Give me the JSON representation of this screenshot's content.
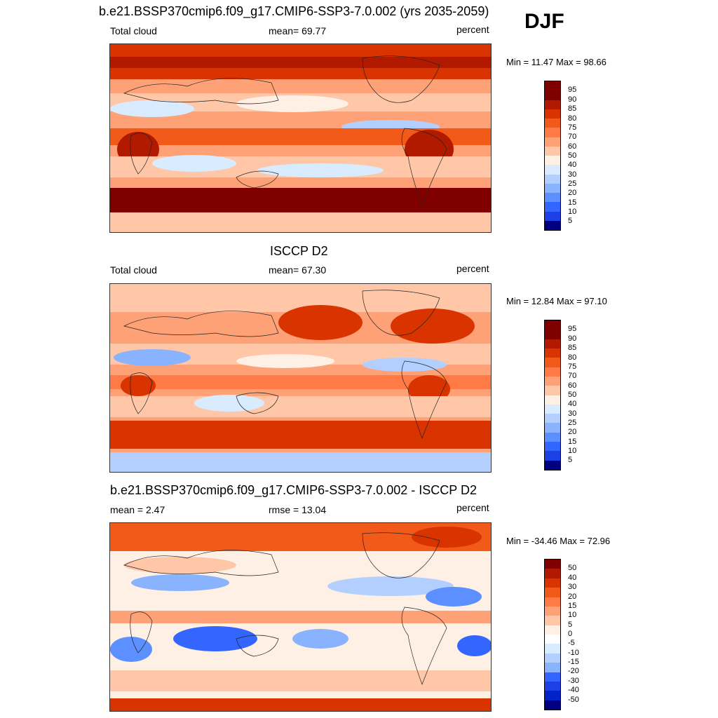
{
  "season": "DJF",
  "panels": [
    {
      "title": "b.e21.BSSP370cmip6.f09_g17.CMIP6-SSP3-7.0.002 (yrs 2035-2059)",
      "left": "Total cloud",
      "center": "mean=  69.77",
      "right": "percent",
      "minmax": "Min =  11.47 Max =  98.66",
      "colorbar_labels": [
        "95",
        "90",
        "85",
        "80",
        "75",
        "70",
        "60",
        "50",
        "40",
        "30",
        "25",
        "20",
        "15",
        "10",
        "5"
      ],
      "colors": [
        "#800000",
        "#b21a00",
        "#d93300",
        "#f25a1a",
        "#ff7a45",
        "#ffa177",
        "#ffc7a8",
        "#fff0e6",
        "#d9ebff",
        "#b3cfff",
        "#8ab3ff",
        "#5c8fff",
        "#3366ff",
        "#1a40e6",
        "#0022c8",
        "#000080"
      ]
    },
    {
      "title": "ISCCP D2",
      "left": "Total cloud",
      "center": "mean=  67.30",
      "right": "percent",
      "minmax": "Min =  12.84 Max =  97.10",
      "colorbar_labels": [
        "95",
        "90",
        "85",
        "80",
        "75",
        "70",
        "60",
        "50",
        "40",
        "30",
        "25",
        "20",
        "15",
        "10",
        "5"
      ],
      "colors": [
        "#800000",
        "#b21a00",
        "#d93300",
        "#f25a1a",
        "#ff7a45",
        "#ffa177",
        "#ffc7a8",
        "#fff0e6",
        "#d9ebff",
        "#b3cfff",
        "#8ab3ff",
        "#5c8fff",
        "#3366ff",
        "#1a40e6",
        "#0022c8",
        "#000080"
      ]
    },
    {
      "title": "b.e21.BSSP370cmip6.f09_g17.CMIP6-SSP3-7.0.002 - ISCCP D2",
      "left": "mean =   2.47",
      "center": "rmse =  13.04",
      "right": "percent",
      "minmax": "Min = -34.46 Max =  72.96",
      "colorbar_labels": [
        "50",
        "40",
        "30",
        "20",
        "15",
        "10",
        "5",
        "0",
        "-5",
        "-10",
        "-15",
        "-20",
        "-30",
        "-40",
        "-50"
      ],
      "colors": [
        "#800000",
        "#b21a00",
        "#d93300",
        "#f25a1a",
        "#ff7a45",
        "#ffa177",
        "#ffc7a8",
        "#fff0e6",
        "#d9ebff",
        "#b3cfff",
        "#8ab3ff",
        "#5c8fff",
        "#3366ff",
        "#1a40e6",
        "#0022c8",
        "#000080"
      ]
    }
  ]
}
